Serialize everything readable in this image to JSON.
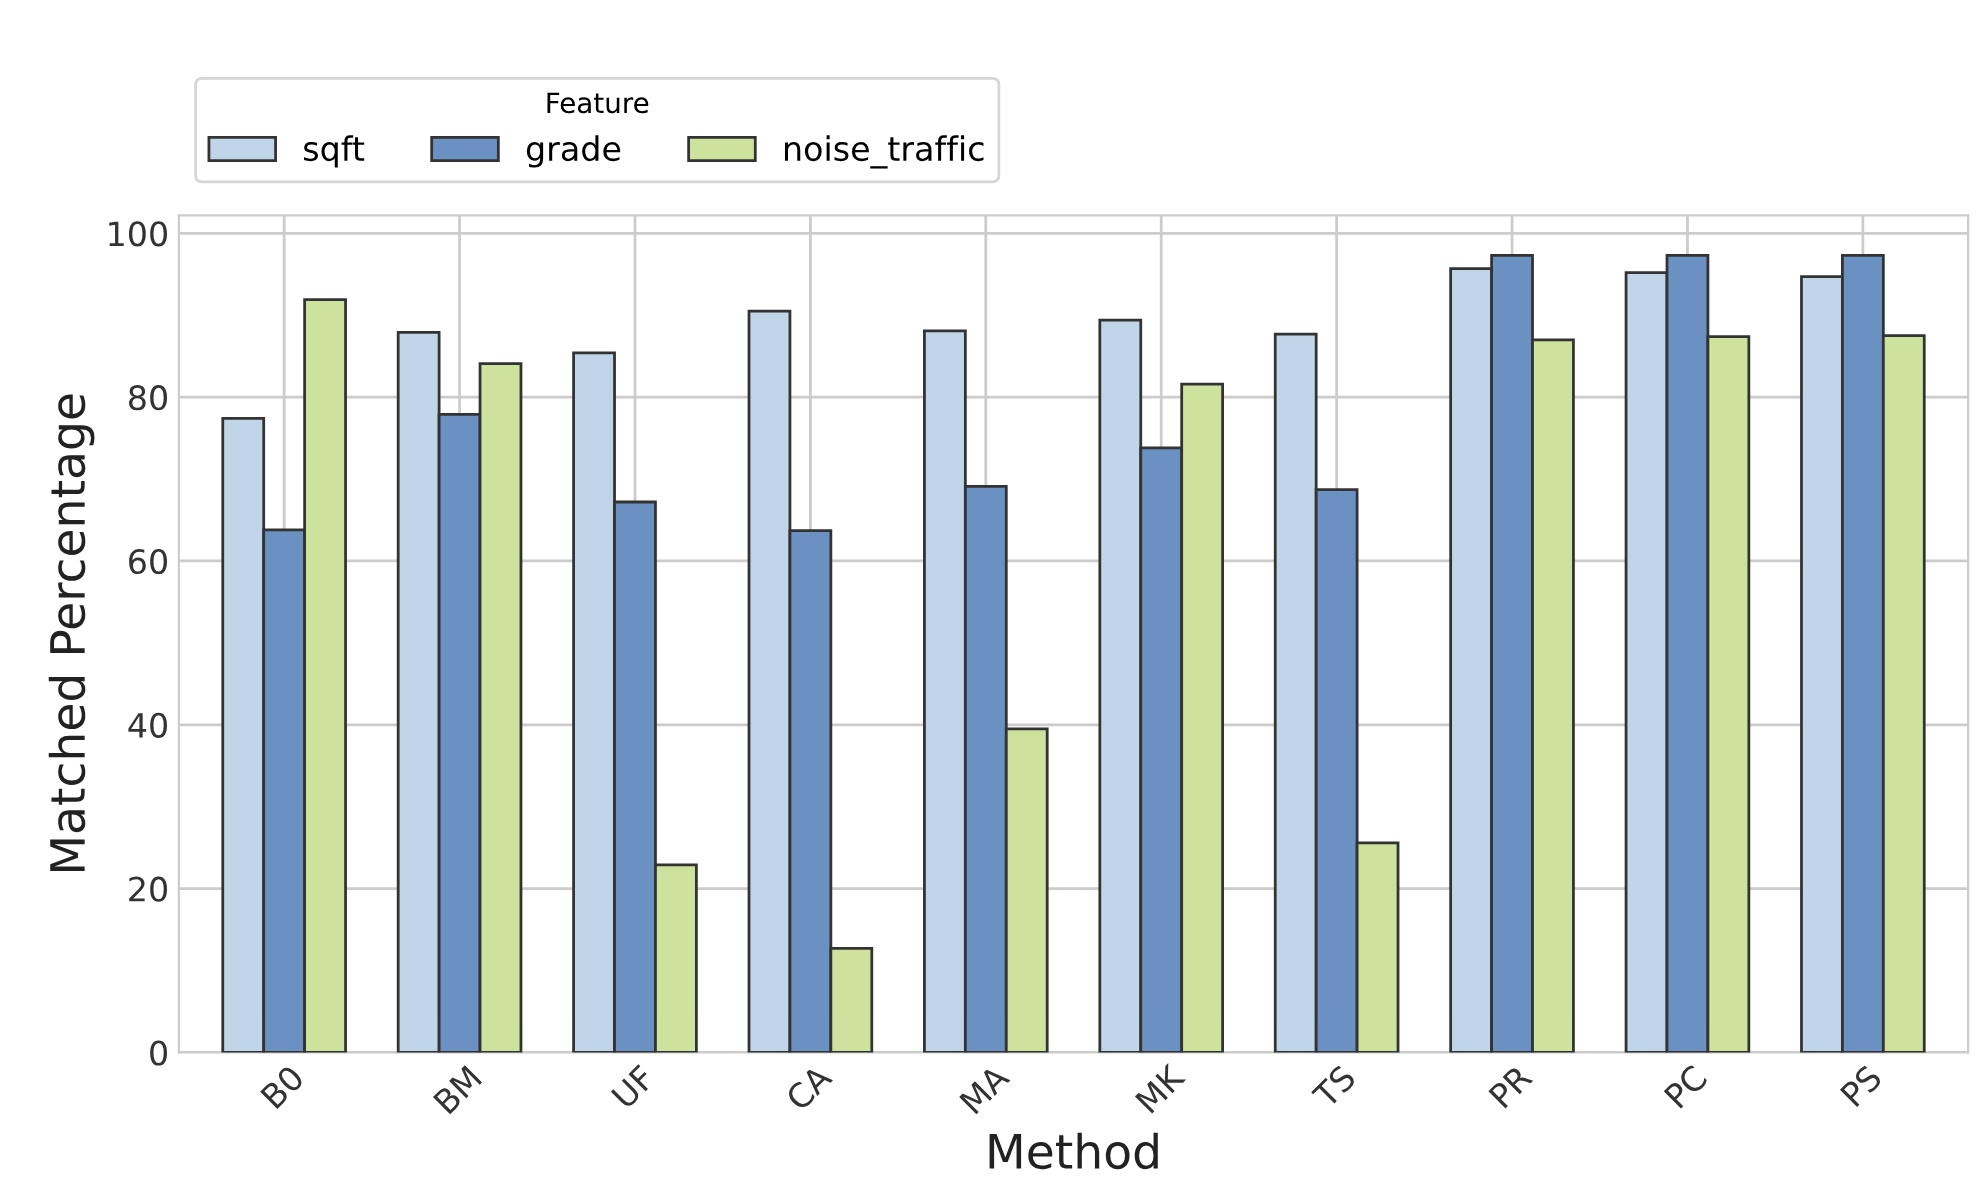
{
  "chart_data": {
    "type": "bar",
    "xlabel": "Method",
    "ylabel": "Matched Percentage",
    "legend_title": "Feature",
    "categories": [
      "B0",
      "BM",
      "UF",
      "CA",
      "MA",
      "MK",
      "TS",
      "PR",
      "PC",
      "PS"
    ],
    "series": [
      {
        "name": "sqft",
        "color": "#c0d5e8",
        "values": [
          77.4,
          87.9,
          85.4,
          90.5,
          88.1,
          89.4,
          87.7,
          95.7,
          95.2,
          94.7
        ]
      },
      {
        "name": "grade",
        "color": "#6a91c1",
        "values": [
          63.8,
          77.9,
          67.2,
          63.7,
          69.1,
          73.8,
          68.7,
          97.3,
          97.3,
          97.3
        ]
      },
      {
        "name": "noise_traffic",
        "color": "#cde39d",
        "values": [
          91.9,
          84.1,
          22.9,
          12.7,
          39.5,
          81.6,
          25.6,
          87.0,
          87.4,
          87.5
        ]
      }
    ],
    "ylim": [
      0,
      102.2
    ],
    "yticks": [
      0,
      20,
      40,
      60,
      80,
      100
    ],
    "grid": true,
    "legend": "top left"
  }
}
